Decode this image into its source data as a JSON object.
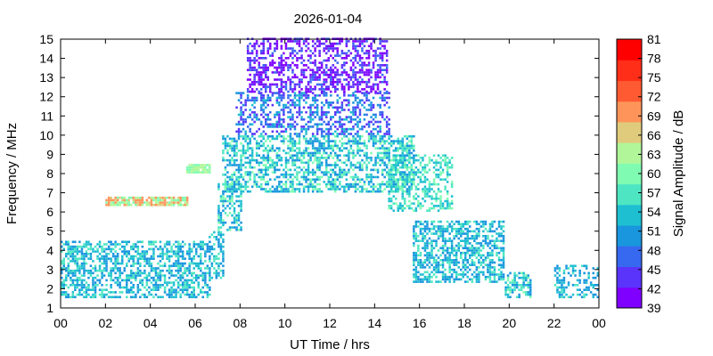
{
  "chart_data": {
    "type": "heatmap",
    "title": "2026-01-04",
    "xlabel": "UT Time / hrs",
    "ylabel": "Frequency / MHz",
    "xlim": [
      0,
      24
    ],
    "ylim": [
      1,
      15
    ],
    "x_ticks": [
      "00",
      "02",
      "04",
      "06",
      "08",
      "10",
      "12",
      "14",
      "16",
      "18",
      "20",
      "22",
      "00"
    ],
    "y_ticks": [
      "1",
      "2",
      "3",
      "4",
      "5",
      "6",
      "7",
      "8",
      "9",
      "10",
      "11",
      "12",
      "13",
      "14",
      "15"
    ],
    "colorbar": {
      "label": "Signal Amplitude / dB",
      "ticks": [
        "39",
        "42",
        "45",
        "48",
        "51",
        "54",
        "57",
        "60",
        "63",
        "66",
        "69",
        "72",
        "75",
        "78",
        "81"
      ],
      "min": 39,
      "max": 81,
      "step": 3,
      "colors": [
        "#7f00ff",
        "#5a34fb",
        "#3768f0",
        "#1996de",
        "#1ebfd1",
        "#4ee6c2",
        "#7ffcb2",
        "#b1f79a",
        "#e0cb7c",
        "#fe9459",
        "#ff5a31",
        "#ff2e19",
        "#ff0000"
      ]
    },
    "grid": false,
    "legend": "colorbar-right",
    "regions": [
      {
        "x": [
          0.0,
          6.6
        ],
        "y": [
          1.5,
          4.4
        ],
        "amp": [
          48,
          57
        ],
        "density": 0.55,
        "value_mean": 52
      },
      {
        "x": [
          2.0,
          5.6
        ],
        "y": [
          6.3,
          6.8
        ],
        "amp": [
          57,
          69
        ],
        "density": 0.85,
        "value_mean": 63
      },
      {
        "x": [
          5.6,
          6.6
        ],
        "y": [
          8.0,
          8.4
        ],
        "amp": [
          57,
          63
        ],
        "density": 0.9,
        "value_mean": 60
      },
      {
        "x": [
          6.6,
          7.2
        ],
        "y": [
          2.5,
          5.0
        ],
        "amp": [
          48,
          57
        ],
        "density": 0.4,
        "value_mean": 52
      },
      {
        "x": [
          7.0,
          8.0
        ],
        "y": [
          5.0,
          7.5
        ],
        "amp": [
          48,
          60
        ],
        "density": 0.5,
        "value_mean": 54
      },
      {
        "x": [
          7.2,
          15.7
        ],
        "y": [
          7.0,
          10.0
        ],
        "amp": [
          48,
          60
        ],
        "density": 0.55,
        "value_mean": 53
      },
      {
        "x": [
          7.8,
          14.6
        ],
        "y": [
          10.0,
          12.2
        ],
        "amp": [
          42,
          54
        ],
        "density": 0.45,
        "value_mean": 47
      },
      {
        "x": [
          8.3,
          14.5
        ],
        "y": [
          12.2,
          15.0
        ],
        "amp": [
          39,
          48
        ],
        "density": 0.5,
        "value_mean": 42
      },
      {
        "x": [
          14.6,
          17.5
        ],
        "y": [
          6.0,
          9.0
        ],
        "amp": [
          51,
          60
        ],
        "density": 0.45,
        "value_mean": 55
      },
      {
        "x": [
          15.7,
          19.8
        ],
        "y": [
          2.3,
          5.5
        ],
        "amp": [
          48,
          57
        ],
        "density": 0.55,
        "value_mean": 52
      },
      {
        "x": [
          19.8,
          21.0
        ],
        "y": [
          1.5,
          2.8
        ],
        "amp": [
          48,
          60
        ],
        "density": 0.6,
        "value_mean": 53
      },
      {
        "x": [
          22.0,
          24.0
        ],
        "y": [
          1.5,
          3.2
        ],
        "amp": [
          48,
          57
        ],
        "density": 0.35,
        "value_mean": 52
      }
    ]
  }
}
